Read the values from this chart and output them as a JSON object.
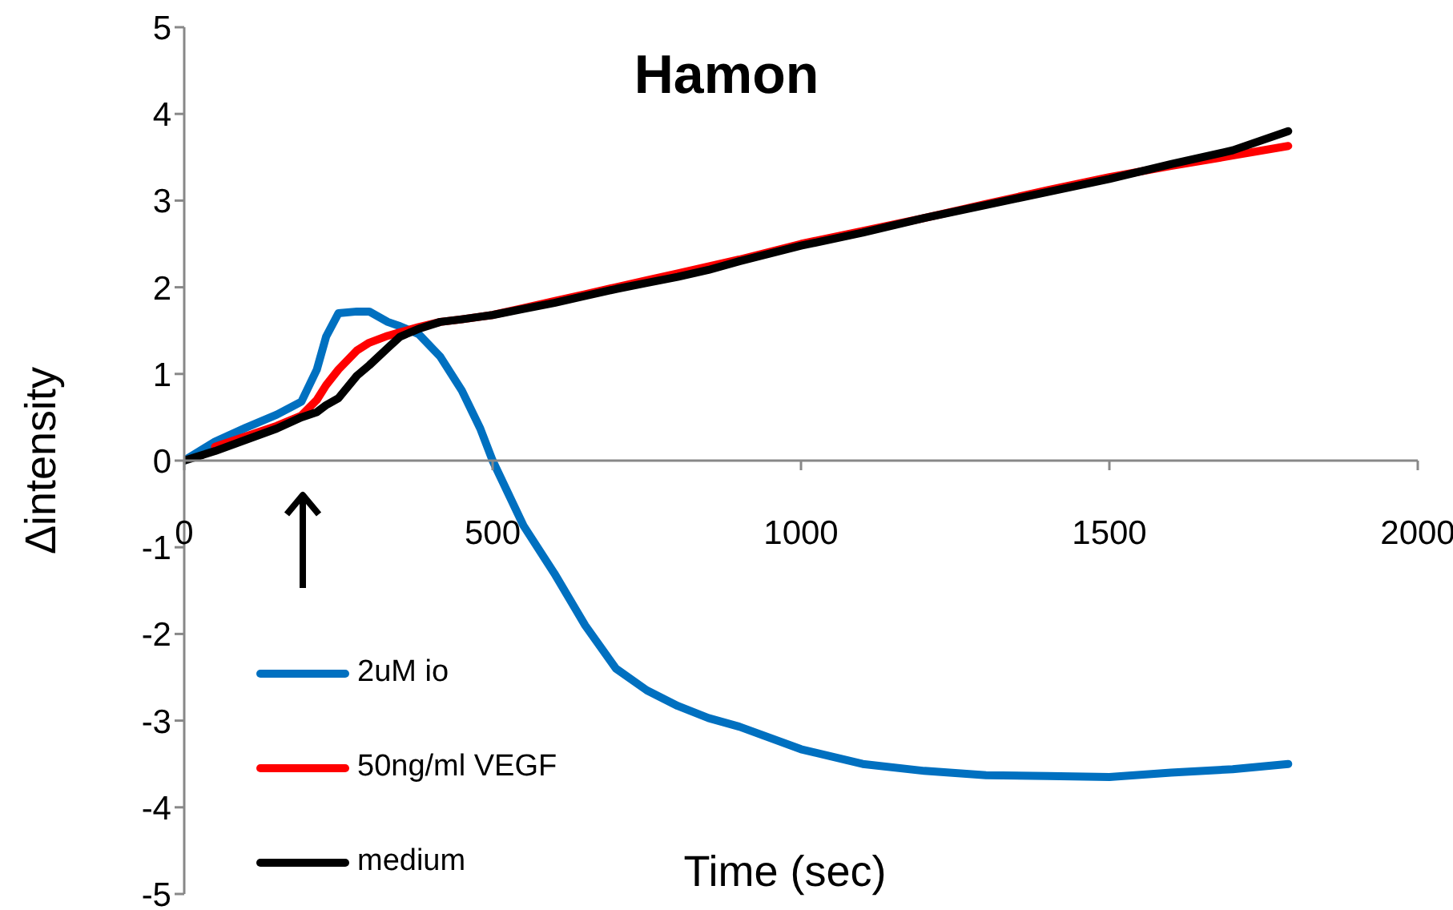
{
  "chart_data": {
    "type": "line",
    "title": "Hamon",
    "xlabel": "Time (sec)",
    "ylabel": "Δintensity",
    "x": [
      0,
      50,
      100,
      150,
      190,
      215,
      230,
      250,
      280,
      300,
      330,
      350,
      380,
      415,
      450,
      480,
      500,
      550,
      600,
      650,
      700,
      750,
      800,
      850,
      900,
      1000,
      1100,
      1200,
      1300,
      1400,
      1500,
      1600,
      1700,
      1790
    ],
    "series": [
      {
        "name": "2uM io",
        "color": "#0070c0",
        "values": [
          0,
          0.22,
          0.38,
          0.53,
          0.68,
          1.05,
          1.43,
          1.7,
          1.72,
          1.72,
          1.6,
          1.55,
          1.46,
          1.2,
          0.81,
          0.37,
          0,
          -0.75,
          -1.3,
          -1.9,
          -2.4,
          -2.65,
          -2.83,
          -2.97,
          -3.07,
          -3.33,
          -3.5,
          -3.58,
          -3.63,
          -3.64,
          -3.65,
          -3.6,
          -3.56,
          -3.5
        ]
      },
      {
        "name": "50ng/ml VEGF",
        "color": "#ff0000",
        "values": [
          null,
          0.16,
          0.28,
          0.4,
          0.52,
          0.7,
          0.87,
          1.05,
          1.27,
          1.36,
          1.44,
          1.48,
          1.54,
          1.6,
          1.63,
          1.66,
          1.68,
          1.76,
          1.84,
          1.92,
          2.0,
          2.08,
          2.16,
          2.24,
          2.32,
          2.5,
          2.65,
          2.8,
          2.96,
          3.12,
          3.27,
          3.4,
          3.52,
          3.63
        ]
      },
      {
        "name": "medium",
        "color": "#000000",
        "values": [
          0,
          0.11,
          0.24,
          0.37,
          0.5,
          0.56,
          0.64,
          0.72,
          0.98,
          1.1,
          1.3,
          1.43,
          1.52,
          1.6,
          1.63,
          1.66,
          1.68,
          1.75,
          1.82,
          1.9,
          1.98,
          2.05,
          2.12,
          2.2,
          2.3,
          2.48,
          2.63,
          2.8,
          2.95,
          3.1,
          3.25,
          3.42,
          3.58,
          3.8
        ]
      }
    ],
    "xlim": [
      0,
      2000
    ],
    "xticks": [
      0,
      500,
      1000,
      1500,
      2000
    ],
    "ylim": [
      -5,
      5
    ],
    "yticks": [
      -5,
      -4,
      -3,
      -2,
      -1,
      0,
      1,
      2,
      3,
      4,
      5
    ],
    "legend": "bottom left",
    "grid": false,
    "marker": "none",
    "line_style": "solid"
  }
}
